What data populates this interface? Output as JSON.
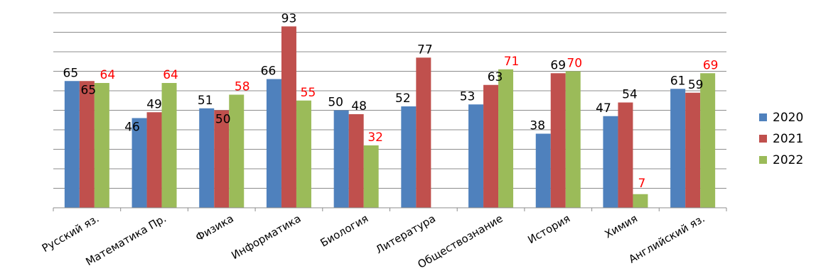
{
  "chart_data": {
    "type": "bar",
    "categories": [
      "Русский яз.",
      "Математика Пр.",
      "Физика",
      "Информатика",
      "Биология",
      "Литература",
      "Обществознание",
      "История",
      "Химия",
      "Английский яз."
    ],
    "series": [
      {
        "name": "2020",
        "color": "#4F81BD",
        "label_color": "#000000",
        "values": [
          65,
          46,
          51,
          66,
          50,
          52,
          53,
          38,
          47,
          61
        ]
      },
      {
        "name": "2021",
        "color": "#C0504D",
        "label_color": "#000000",
        "values": [
          65,
          49,
          50,
          93,
          48,
          77,
          63,
          69,
          54,
          59
        ]
      },
      {
        "name": "2022",
        "color": "#9BBB59",
        "label_color": "#FF0000",
        "values": [
          64,
          64,
          58,
          55,
          32,
          null,
          71,
          70,
          7,
          69
        ]
      }
    ],
    "ylim": [
      0,
      100
    ],
    "grid": true,
    "legend_position": "right"
  }
}
